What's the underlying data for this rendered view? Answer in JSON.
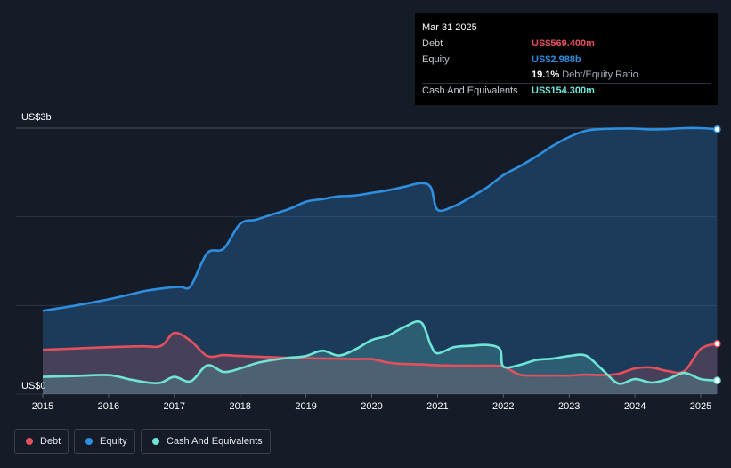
{
  "tooltip": {
    "date": "Mar 31 2025",
    "debt_label": "Debt",
    "debt_value": "US$569.400m",
    "equity_label": "Equity",
    "equity_value": "US$2.988b",
    "ratio_value": "19.1%",
    "ratio_label": "Debt/Equity Ratio",
    "cash_label": "Cash And Equivalents",
    "cash_value": "US$154.300m"
  },
  "legend": {
    "debt": "Debt",
    "equity": "Equity",
    "cash": "Cash And Equivalents"
  },
  "colors": {
    "debt": "#e5505d",
    "equity": "#2e8fe0",
    "cash": "#6fe5d6",
    "background": "#151b27",
    "grid": "#2c3341"
  },
  "chart_data": {
    "type": "area",
    "title": "",
    "xlabel": "",
    "ylabel": "",
    "ylim": [
      0,
      3000
    ],
    "xlim": [
      2015,
      2025.25
    ],
    "y_tick_labels": [
      {
        "value": 3000,
        "label": "US$3b"
      },
      {
        "value": 0,
        "label": "US$0"
      }
    ],
    "x_ticks": [
      2015,
      2016,
      2017,
      2018,
      2019,
      2020,
      2021,
      2022,
      2023,
      2024,
      2025
    ],
    "x_tick_labels": [
      "2015",
      "2016",
      "2017",
      "2018",
      "2019",
      "2020",
      "2021",
      "2022",
      "2023",
      "2024",
      "2025"
    ],
    "series": [
      {
        "name": "Equity",
        "key": "equity",
        "x": [
          2015.0,
          2015.5,
          2016.0,
          2016.3,
          2016.6,
          2016.9,
          2017.1,
          2017.25,
          2017.5,
          2017.75,
          2018.0,
          2018.25,
          2018.5,
          2018.75,
          2019.0,
          2019.25,
          2019.5,
          2019.75,
          2020.0,
          2020.25,
          2020.5,
          2020.75,
          2020.9,
          2021.0,
          2021.25,
          2021.5,
          2021.75,
          2022.0,
          2022.25,
          2022.5,
          2022.75,
          2023.0,
          2023.25,
          2023.5,
          2023.75,
          2024.0,
          2024.25,
          2024.5,
          2024.75,
          2025.0,
          2025.25
        ],
        "values": [
          940,
          1000,
          1070,
          1120,
          1170,
          1200,
          1210,
          1220,
          1590,
          1640,
          1920,
          1970,
          2030,
          2090,
          2170,
          2200,
          2230,
          2240,
          2270,
          2300,
          2340,
          2380,
          2330,
          2080,
          2120,
          2220,
          2330,
          2470,
          2570,
          2680,
          2800,
          2900,
          2970,
          2990,
          2995,
          2995,
          2985,
          2990,
          3000,
          3000,
          2988
        ]
      },
      {
        "name": "Debt",
        "key": "debt",
        "x": [
          2015.0,
          2015.5,
          2016.0,
          2016.5,
          2016.8,
          2017.0,
          2017.25,
          2017.5,
          2017.75,
          2018.0,
          2018.5,
          2019.0,
          2019.5,
          2019.75,
          2020.0,
          2020.25,
          2020.5,
          2020.75,
          2021.0,
          2021.5,
          2021.75,
          2022.0,
          2022.25,
          2022.5,
          2022.75,
          2023.0,
          2023.25,
          2023.5,
          2023.75,
          2024.0,
          2024.25,
          2024.5,
          2024.75,
          2025.0,
          2025.25
        ],
        "values": [
          500,
          515,
          530,
          540,
          545,
          690,
          600,
          430,
          440,
          430,
          415,
          405,
          400,
          395,
          395,
          355,
          340,
          335,
          325,
          320,
          320,
          310,
          220,
          210,
          210,
          210,
          220,
          215,
          230,
          290,
          300,
          260,
          260,
          510,
          569.4
        ]
      },
      {
        "name": "Cash And Equivalents",
        "key": "cash",
        "x": [
          2015.0,
          2015.5,
          2016.0,
          2016.3,
          2016.6,
          2016.8,
          2017.0,
          2017.25,
          2017.5,
          2017.75,
          2018.0,
          2018.25,
          2018.5,
          2018.75,
          2019.0,
          2019.25,
          2019.5,
          2019.75,
          2020.0,
          2020.25,
          2020.5,
          2020.75,
          2020.9,
          2021.0,
          2021.25,
          2021.5,
          2021.75,
          2021.95,
          2022.0,
          2022.25,
          2022.5,
          2022.75,
          2023.0,
          2023.25,
          2023.5,
          2023.75,
          2024.0,
          2024.25,
          2024.5,
          2024.75,
          2025.0,
          2025.25
        ],
        "values": [
          195,
          205,
          215,
          170,
          130,
          130,
          195,
          145,
          325,
          250,
          290,
          350,
          385,
          410,
          430,
          490,
          435,
          505,
          610,
          660,
          760,
          810,
          550,
          460,
          530,
          545,
          555,
          505,
          310,
          330,
          385,
          400,
          430,
          435,
          280,
          120,
          170,
          130,
          170,
          240,
          170,
          154.3
        ]
      }
    ]
  }
}
